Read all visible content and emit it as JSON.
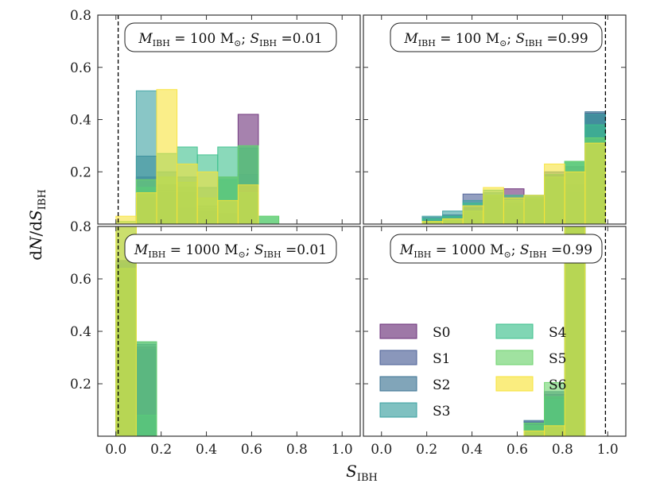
{
  "chart_data": {
    "type": "bar",
    "layout": "2x2 grid of step histograms, shared axes",
    "xlabel": "S_IBH",
    "ylabel": "dN/dS_IBH",
    "xlim": [
      -0.08,
      1.08
    ],
    "ylim": [
      0,
      0.8
    ],
    "xticks": [
      "0.0",
      "0.2",
      "0.4",
      "0.6",
      "0.8",
      "1.0"
    ],
    "yticks": [
      "0.2",
      "0.4",
      "0.6",
      "0.8"
    ],
    "bin_edges": [
      0.0,
      0.09,
      0.18,
      0.27,
      0.36,
      0.45,
      0.54,
      0.63,
      0.72,
      0.81,
      0.9,
      0.99
    ],
    "series": [
      {
        "name": "S0",
        "color": "#6a2f78"
      },
      {
        "name": "S1",
        "color": "#4b5f96"
      },
      {
        "name": "S2",
        "color": "#3d7494"
      },
      {
        "name": "S3",
        "color": "#3aa0a0"
      },
      {
        "name": "S4",
        "color": "#3cc08c"
      },
      {
        "name": "S5",
        "color": "#6dd36d"
      },
      {
        "name": "S6",
        "color": "#f7e33a"
      }
    ],
    "panels": [
      {
        "id": "top-left",
        "annotation": "M_IBH = 100 M_sun; S_IBH = 0.01",
        "vline": 0.01,
        "data": {
          "S0": [
            0,
            0.1,
            0.12,
            0.06,
            0.05,
            0.04,
            0.42,
            0,
            0,
            0,
            0
          ],
          "S1": [
            0,
            0.18,
            0.15,
            0.12,
            0.06,
            0.04,
            0.19,
            0,
            0,
            0,
            0
          ],
          "S2": [
            0,
            0.26,
            0.13,
            0.14,
            0.07,
            0.18,
            0.29,
            0,
            0,
            0,
            0
          ],
          "S3": [
            0,
            0.51,
            0.2,
            0.18,
            0.14,
            0.17,
            0.3,
            0,
            0,
            0,
            0
          ],
          "S4": [
            0,
            0.14,
            0.27,
            0.295,
            0.265,
            0.295,
            0.12,
            0.03,
            0,
            0,
            0
          ],
          "S5": [
            0.01,
            0.17,
            0.18,
            0.16,
            0.1,
            0.18,
            0.3,
            0.03,
            0,
            0,
            0
          ],
          "S6": [
            0.03,
            0.12,
            0.515,
            0.23,
            0.2,
            0.09,
            0.15,
            0,
            0,
            0,
            0
          ]
        }
      },
      {
        "id": "top-right",
        "annotation": "M_IBH = 100 M_sun; S_IBH = 0.99",
        "vline": 0.99,
        "data": {
          "S0": [
            0,
            0,
            0,
            0,
            0,
            0.09,
            0.135,
            0.1,
            0.19,
            0.22,
            0.42
          ],
          "S1": [
            0,
            0,
            0.015,
            0.035,
            0.115,
            0.11,
            0.08,
            0.1,
            0.17,
            0.15,
            0.425
          ],
          "S2": [
            0,
            0,
            0.025,
            0.03,
            0.06,
            0.1,
            0.07,
            0.09,
            0.2,
            0.12,
            0.43
          ],
          "S3": [
            0,
            0,
            0.03,
            0.05,
            0.09,
            0.12,
            0.1,
            0.11,
            0.17,
            0.24,
            0.42
          ],
          "S4": [
            0,
            0,
            0.02,
            0.03,
            0.08,
            0.13,
            0.11,
            0.11,
            0.19,
            0.24,
            0.38
          ],
          "S5": [
            0,
            0,
            0.01,
            0.02,
            0.05,
            0.11,
            0.09,
            0.1,
            0.18,
            0.24,
            0.33
          ],
          "S6": [
            0,
            0,
            0.01,
            0.02,
            0.07,
            0.14,
            0.1,
            0.11,
            0.23,
            0.2,
            0.31
          ]
        }
      },
      {
        "id": "bottom-left",
        "annotation": "M_IBH = 1000 M_sun; S_IBH = 0.01",
        "vline": 0.01,
        "data": {
          "S0": [
            0.66,
            0.34,
            0,
            0,
            0,
            0,
            0,
            0,
            0,
            0,
            0
          ],
          "S1": [
            0.67,
            0.33,
            0,
            0,
            0,
            0,
            0,
            0,
            0,
            0,
            0
          ],
          "S2": [
            0.67,
            0.35,
            0,
            0,
            0,
            0,
            0,
            0,
            0,
            0,
            0
          ],
          "S3": [
            0.66,
            0.36,
            0,
            0,
            0,
            0,
            0,
            0,
            0,
            0,
            0
          ],
          "S4": [
            0.92,
            0.08,
            0,
            0,
            0,
            0,
            0,
            0,
            0,
            0,
            0
          ],
          "S5": [
            0.64,
            0.36,
            0,
            0,
            0,
            0,
            0,
            0,
            0,
            0,
            0
          ],
          "S6": [
            1.0,
            0,
            0,
            0,
            0,
            0,
            0,
            0,
            0,
            0,
            0
          ]
        }
      },
      {
        "id": "bottom-right",
        "annotation": "M_IBH = 1000 M_sun; S_IBH = 0.99",
        "vline": 0.99,
        "data": {
          "S0": [
            0,
            0,
            0,
            0,
            0,
            0,
            0,
            0.05,
            0.15,
            0.95,
            0
          ],
          "S1": [
            0,
            0,
            0,
            0,
            0,
            0,
            0,
            0.055,
            0.16,
            0.95,
            0
          ],
          "S2": [
            0,
            0,
            0,
            0,
            0,
            0,
            0,
            0.06,
            0.17,
            0.95,
            0
          ],
          "S3": [
            0,
            0,
            0,
            0,
            0,
            0,
            0,
            0.05,
            0.14,
            0.95,
            0
          ],
          "S4": [
            0,
            0,
            0,
            0,
            0,
            0,
            0,
            0.04,
            0.15,
            0.95,
            0
          ],
          "S5": [
            0,
            0,
            0,
            0,
            0,
            0,
            0,
            0.05,
            0.205,
            0.95,
            0
          ],
          "S6": [
            0,
            0,
            0,
            0,
            0,
            0,
            0,
            0.02,
            0.04,
            0.95,
            0
          ]
        }
      }
    ],
    "legend": {
      "placement": "bottom-right panel, lower left",
      "columns": 2
    }
  }
}
